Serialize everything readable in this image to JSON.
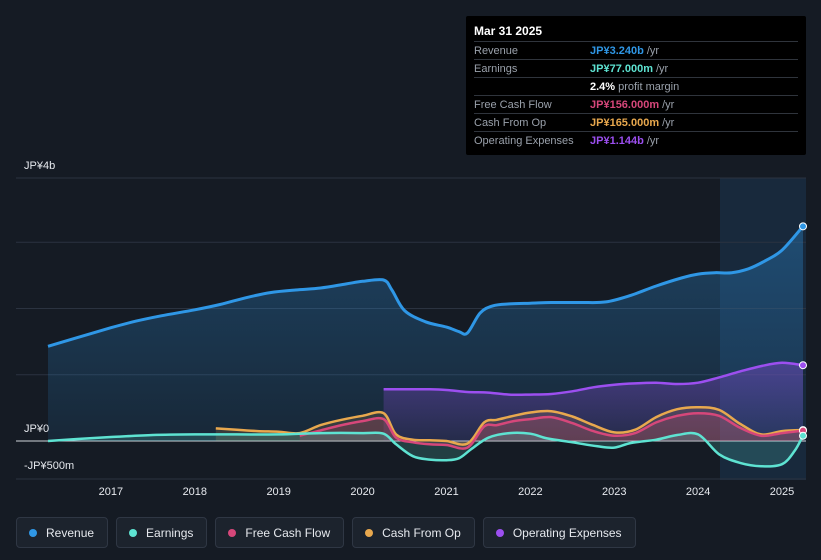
{
  "colors": {
    "revenue": "#2f97e6",
    "earnings": "#5ee3d2",
    "fcf": "#d6477a",
    "cfo": "#e8a84e",
    "opex": "#9c4ff0"
  },
  "tooltip": {
    "date": "Mar 31 2025",
    "rows": [
      {
        "label": "Revenue",
        "value": "JP¥3.240b",
        "suffix": "/yr",
        "color_key": "revenue"
      },
      {
        "label": "Earnings",
        "value": "JP¥77.000m",
        "suffix": "/yr",
        "color_key": "earnings"
      },
      {
        "label": "",
        "value": "2.4%",
        "suffix": "profit margin",
        "color_key": "white"
      },
      {
        "label": "Free Cash Flow",
        "value": "JP¥156.000m",
        "suffix": "/yr",
        "color_key": "fcf"
      },
      {
        "label": "Cash From Op",
        "value": "JP¥165.000m",
        "suffix": "/yr",
        "color_key": "cfo"
      },
      {
        "label": "Operating Expenses",
        "value": "JP¥1.144b",
        "suffix": "/yr",
        "color_key": "opex"
      }
    ]
  },
  "legend": [
    {
      "label": "Revenue",
      "color_key": "revenue"
    },
    {
      "label": "Earnings",
      "color_key": "earnings"
    },
    {
      "label": "Free Cash Flow",
      "color_key": "fcf"
    },
    {
      "label": "Cash From Op",
      "color_key": "cfo"
    },
    {
      "label": "Operating Expenses",
      "color_key": "opex"
    }
  ],
  "chart_data": {
    "type": "area",
    "title": "",
    "ylabels": {
      "top": "JP¥4b",
      "zero": "JP¥0",
      "bottom": "-JP¥500m"
    },
    "ylim": [
      -0.5,
      4.0
    ],
    "xlim": [
      2016.25,
      2025.25
    ],
    "x_ticks": [
      "2017",
      "2018",
      "2019",
      "2020",
      "2021",
      "2022",
      "2023",
      "2024",
      "2025"
    ],
    "forecast_start": 2024.25,
    "units": "JP¥ billions",
    "series": [
      {
        "name": "Revenue",
        "key": "revenue",
        "points": [
          [
            2016.25,
            1.43
          ],
          [
            2016.6,
            1.56
          ],
          [
            2017.0,
            1.71
          ],
          [
            2017.3,
            1.81
          ],
          [
            2017.6,
            1.89
          ],
          [
            2018.0,
            1.98
          ],
          [
            2018.3,
            2.06
          ],
          [
            2018.6,
            2.16
          ],
          [
            2018.9,
            2.24
          ],
          [
            2019.2,
            2.28
          ],
          [
            2019.5,
            2.31
          ],
          [
            2019.8,
            2.37
          ],
          [
            2020.0,
            2.41
          ],
          [
            2020.25,
            2.43
          ],
          [
            2020.35,
            2.28
          ],
          [
            2020.5,
            1.97
          ],
          [
            2020.75,
            1.8
          ],
          [
            2021.0,
            1.72
          ],
          [
            2021.15,
            1.65
          ],
          [
            2021.25,
            1.63
          ],
          [
            2021.4,
            1.93
          ],
          [
            2021.55,
            2.04
          ],
          [
            2021.75,
            2.07
          ],
          [
            2022.0,
            2.08
          ],
          [
            2022.25,
            2.09
          ],
          [
            2022.6,
            2.09
          ],
          [
            2022.9,
            2.1
          ],
          [
            2023.2,
            2.2
          ],
          [
            2023.5,
            2.34
          ],
          [
            2023.8,
            2.46
          ],
          [
            2024.0,
            2.52
          ],
          [
            2024.2,
            2.54
          ],
          [
            2024.4,
            2.54
          ],
          [
            2024.6,
            2.6
          ],
          [
            2024.8,
            2.72
          ],
          [
            2025.0,
            2.88
          ],
          [
            2025.25,
            3.24
          ]
        ]
      },
      {
        "name": "Earnings",
        "key": "earnings",
        "points": [
          [
            2016.25,
            0.0
          ],
          [
            2016.6,
            0.03
          ],
          [
            2017.0,
            0.06
          ],
          [
            2017.5,
            0.09
          ],
          [
            2018.0,
            0.1
          ],
          [
            2018.5,
            0.1
          ],
          [
            2019.0,
            0.1
          ],
          [
            2019.5,
            0.12
          ],
          [
            2020.0,
            0.12
          ],
          [
            2020.25,
            0.11
          ],
          [
            2020.4,
            -0.05
          ],
          [
            2020.6,
            -0.23
          ],
          [
            2020.8,
            -0.28
          ],
          [
            2021.0,
            -0.29
          ],
          [
            2021.15,
            -0.26
          ],
          [
            2021.3,
            -0.12
          ],
          [
            2021.5,
            0.05
          ],
          [
            2021.75,
            0.12
          ],
          [
            2022.0,
            0.11
          ],
          [
            2022.2,
            0.04
          ],
          [
            2022.5,
            -0.02
          ],
          [
            2022.8,
            -0.08
          ],
          [
            2023.0,
            -0.1
          ],
          [
            2023.2,
            -0.03
          ],
          [
            2023.5,
            0.02
          ],
          [
            2023.75,
            0.09
          ],
          [
            2024.0,
            0.1
          ],
          [
            2024.25,
            -0.2
          ],
          [
            2024.5,
            -0.33
          ],
          [
            2024.75,
            -0.38
          ],
          [
            2025.0,
            -0.35
          ],
          [
            2025.15,
            -0.15
          ],
          [
            2025.25,
            0.08
          ]
        ]
      },
      {
        "name": "Free Cash Flow",
        "key": "fcf",
        "points": [
          [
            2019.25,
            0.08
          ],
          [
            2019.5,
            0.16
          ],
          [
            2019.75,
            0.24
          ],
          [
            2020.0,
            0.3
          ],
          [
            2020.25,
            0.33
          ],
          [
            2020.4,
            0.05
          ],
          [
            2020.6,
            -0.02
          ],
          [
            2020.8,
            -0.05
          ],
          [
            2021.0,
            -0.06
          ],
          [
            2021.25,
            -0.1
          ],
          [
            2021.45,
            0.22
          ],
          [
            2021.6,
            0.24
          ],
          [
            2021.8,
            0.3
          ],
          [
            2022.0,
            0.33
          ],
          [
            2022.25,
            0.36
          ],
          [
            2022.5,
            0.27
          ],
          [
            2022.75,
            0.15
          ],
          [
            2023.0,
            0.08
          ],
          [
            2023.25,
            0.12
          ],
          [
            2023.5,
            0.28
          ],
          [
            2023.75,
            0.38
          ],
          [
            2024.0,
            0.42
          ],
          [
            2024.25,
            0.38
          ],
          [
            2024.5,
            0.2
          ],
          [
            2024.75,
            0.08
          ],
          [
            2025.0,
            0.12
          ],
          [
            2025.25,
            0.156
          ]
        ]
      },
      {
        "name": "Cash From Op",
        "key": "cfo",
        "points": [
          [
            2018.25,
            0.19
          ],
          [
            2018.5,
            0.17
          ],
          [
            2018.75,
            0.15
          ],
          [
            2019.0,
            0.14
          ],
          [
            2019.25,
            0.12
          ],
          [
            2019.5,
            0.24
          ],
          [
            2019.75,
            0.32
          ],
          [
            2020.0,
            0.38
          ],
          [
            2020.25,
            0.42
          ],
          [
            2020.4,
            0.1
          ],
          [
            2020.6,
            0.02
          ],
          [
            2020.8,
            0.01
          ],
          [
            2021.0,
            0.0
          ],
          [
            2021.25,
            -0.04
          ],
          [
            2021.45,
            0.28
          ],
          [
            2021.6,
            0.32
          ],
          [
            2021.8,
            0.38
          ],
          [
            2022.0,
            0.43
          ],
          [
            2022.25,
            0.45
          ],
          [
            2022.5,
            0.37
          ],
          [
            2022.75,
            0.24
          ],
          [
            2023.0,
            0.13
          ],
          [
            2023.25,
            0.17
          ],
          [
            2023.5,
            0.36
          ],
          [
            2023.75,
            0.48
          ],
          [
            2024.0,
            0.51
          ],
          [
            2024.25,
            0.47
          ],
          [
            2024.5,
            0.26
          ],
          [
            2024.75,
            0.1
          ],
          [
            2025.0,
            0.15
          ],
          [
            2025.25,
            0.165
          ]
        ]
      },
      {
        "name": "Operating Expenses",
        "key": "opex",
        "points": [
          [
            2020.25,
            0.78
          ],
          [
            2020.5,
            0.78
          ],
          [
            2020.8,
            0.78
          ],
          [
            2021.0,
            0.77
          ],
          [
            2021.25,
            0.74
          ],
          [
            2021.5,
            0.73
          ],
          [
            2021.75,
            0.7
          ],
          [
            2022.0,
            0.7
          ],
          [
            2022.25,
            0.71
          ],
          [
            2022.5,
            0.75
          ],
          [
            2022.75,
            0.81
          ],
          [
            2023.0,
            0.85
          ],
          [
            2023.25,
            0.87
          ],
          [
            2023.5,
            0.88
          ],
          [
            2023.75,
            0.86
          ],
          [
            2024.0,
            0.88
          ],
          [
            2024.25,
            0.96
          ],
          [
            2024.5,
            1.05
          ],
          [
            2024.75,
            1.13
          ],
          [
            2025.0,
            1.18
          ],
          [
            2025.25,
            1.144
          ]
        ]
      }
    ]
  }
}
